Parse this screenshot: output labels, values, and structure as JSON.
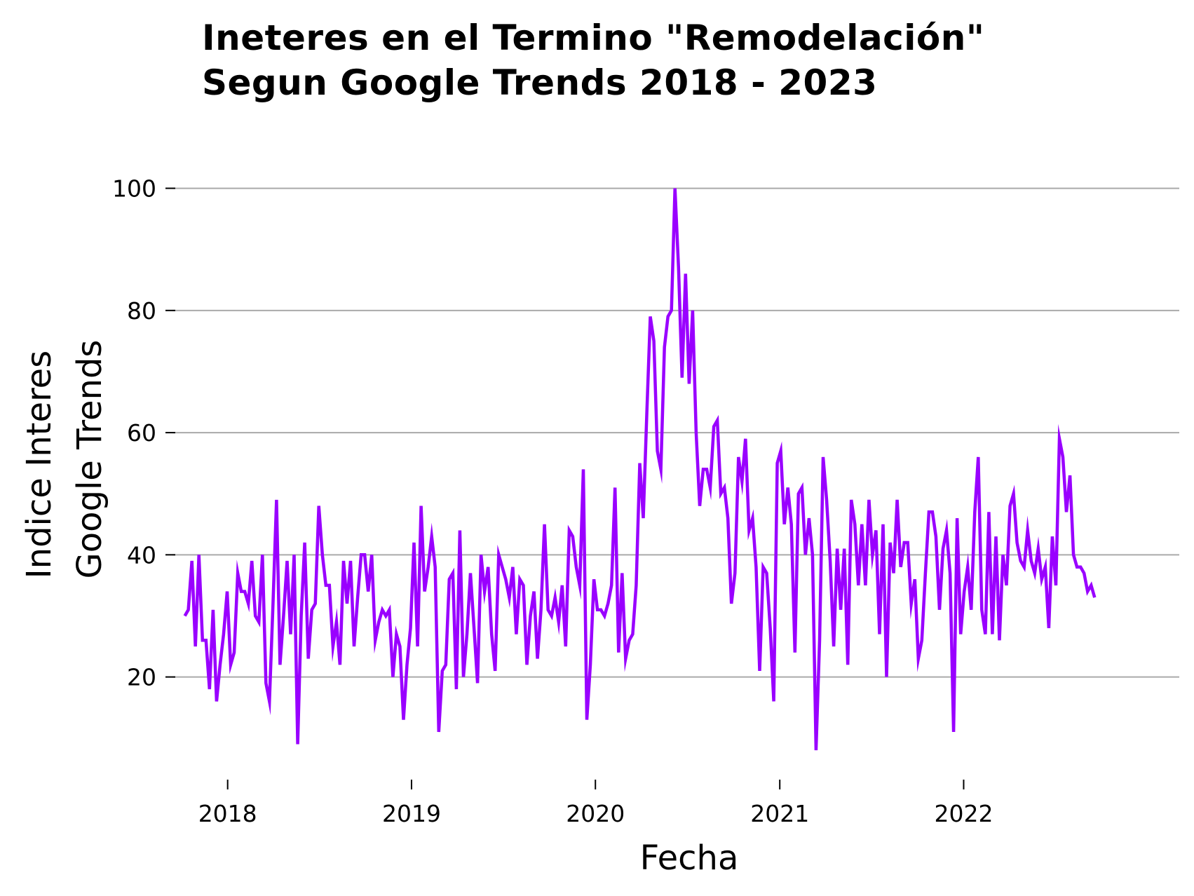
{
  "chart_data": {
    "type": "line",
    "title_lines": [
      "Ineteres en el Termino \"Remodelación\"",
      "Segun Google Trends 2018 - 2023"
    ],
    "xlabel": "Fecha",
    "ylabel_lines": [
      "Indice Interes",
      "Google Trends"
    ],
    "x_ticks": [
      "2018",
      "2019",
      "2020",
      "2021",
      "2022"
    ],
    "y_ticks": [
      20,
      40,
      60,
      80,
      100
    ],
    "xlim": [
      "2017-08-25",
      "2023-03-05"
    ],
    "ylim": [
      4,
      105
    ],
    "grid": "horizontal",
    "line_color": "#9900ff",
    "grid_color": "#aaaaaa",
    "series": [
      {
        "start_date": "2017-10-08",
        "interval_days": 7,
        "values": [
          30,
          31,
          39,
          25,
          40,
          26,
          26,
          18,
          31,
          16,
          22,
          27,
          34,
          22,
          24,
          37,
          34,
          34,
          32,
          39,
          30,
          29,
          40,
          19,
          16,
          32,
          49,
          22,
          30,
          39,
          27,
          40,
          9,
          30,
          42,
          23,
          31,
          32,
          48,
          40,
          35,
          35,
          25,
          29,
          22,
          39,
          32,
          39,
          25,
          33,
          40,
          40,
          34,
          40,
          26,
          29,
          31,
          30,
          31,
          20,
          27,
          25,
          13,
          22,
          28,
          42,
          25,
          48,
          34,
          38,
          43,
          38,
          11,
          21,
          22,
          36,
          37,
          18,
          44,
          20,
          27,
          37,
          28,
          19,
          40,
          34,
          38,
          27,
          21,
          40,
          38,
          36,
          33,
          38,
          27,
          36,
          35,
          22,
          30,
          34,
          23,
          31,
          45,
          31,
          30,
          33,
          29,
          35,
          25,
          44,
          43,
          38,
          35,
          54,
          13,
          22,
          36,
          31,
          31,
          30,
          32,
          35,
          51,
          24,
          37,
          23,
          26,
          27,
          35,
          55,
          46,
          63,
          79,
          75,
          57,
          54,
          74,
          79,
          80,
          100,
          87,
          69,
          86,
          68,
          80,
          60,
          48,
          54,
          54,
          51,
          61,
          62,
          50,
          51,
          46,
          32,
          37,
          56,
          52,
          59,
          44,
          46,
          38,
          21,
          38,
          37,
          28,
          16,
          55,
          57,
          45,
          51,
          45,
          24,
          50,
          51,
          40,
          46,
          40,
          8,
          26,
          56,
          49,
          39,
          25,
          41,
          31,
          41,
          22,
          49,
          45,
          35,
          45,
          35,
          49,
          40,
          44,
          27,
          45,
          20,
          42,
          37,
          49,
          38,
          42,
          42,
          32,
          36,
          23,
          26,
          37,
          47,
          47,
          43,
          31,
          41,
          44,
          37,
          11,
          46,
          27,
          34,
          38,
          31,
          47,
          56,
          31,
          27,
          47,
          27,
          43,
          26,
          40,
          35,
          48,
          50,
          42,
          39,
          38,
          44,
          39,
          37,
          41,
          36,
          38,
          28,
          43,
          35,
          59,
          56,
          47,
          53,
          40,
          38,
          38,
          37,
          34,
          35,
          33
        ]
      }
    ]
  }
}
